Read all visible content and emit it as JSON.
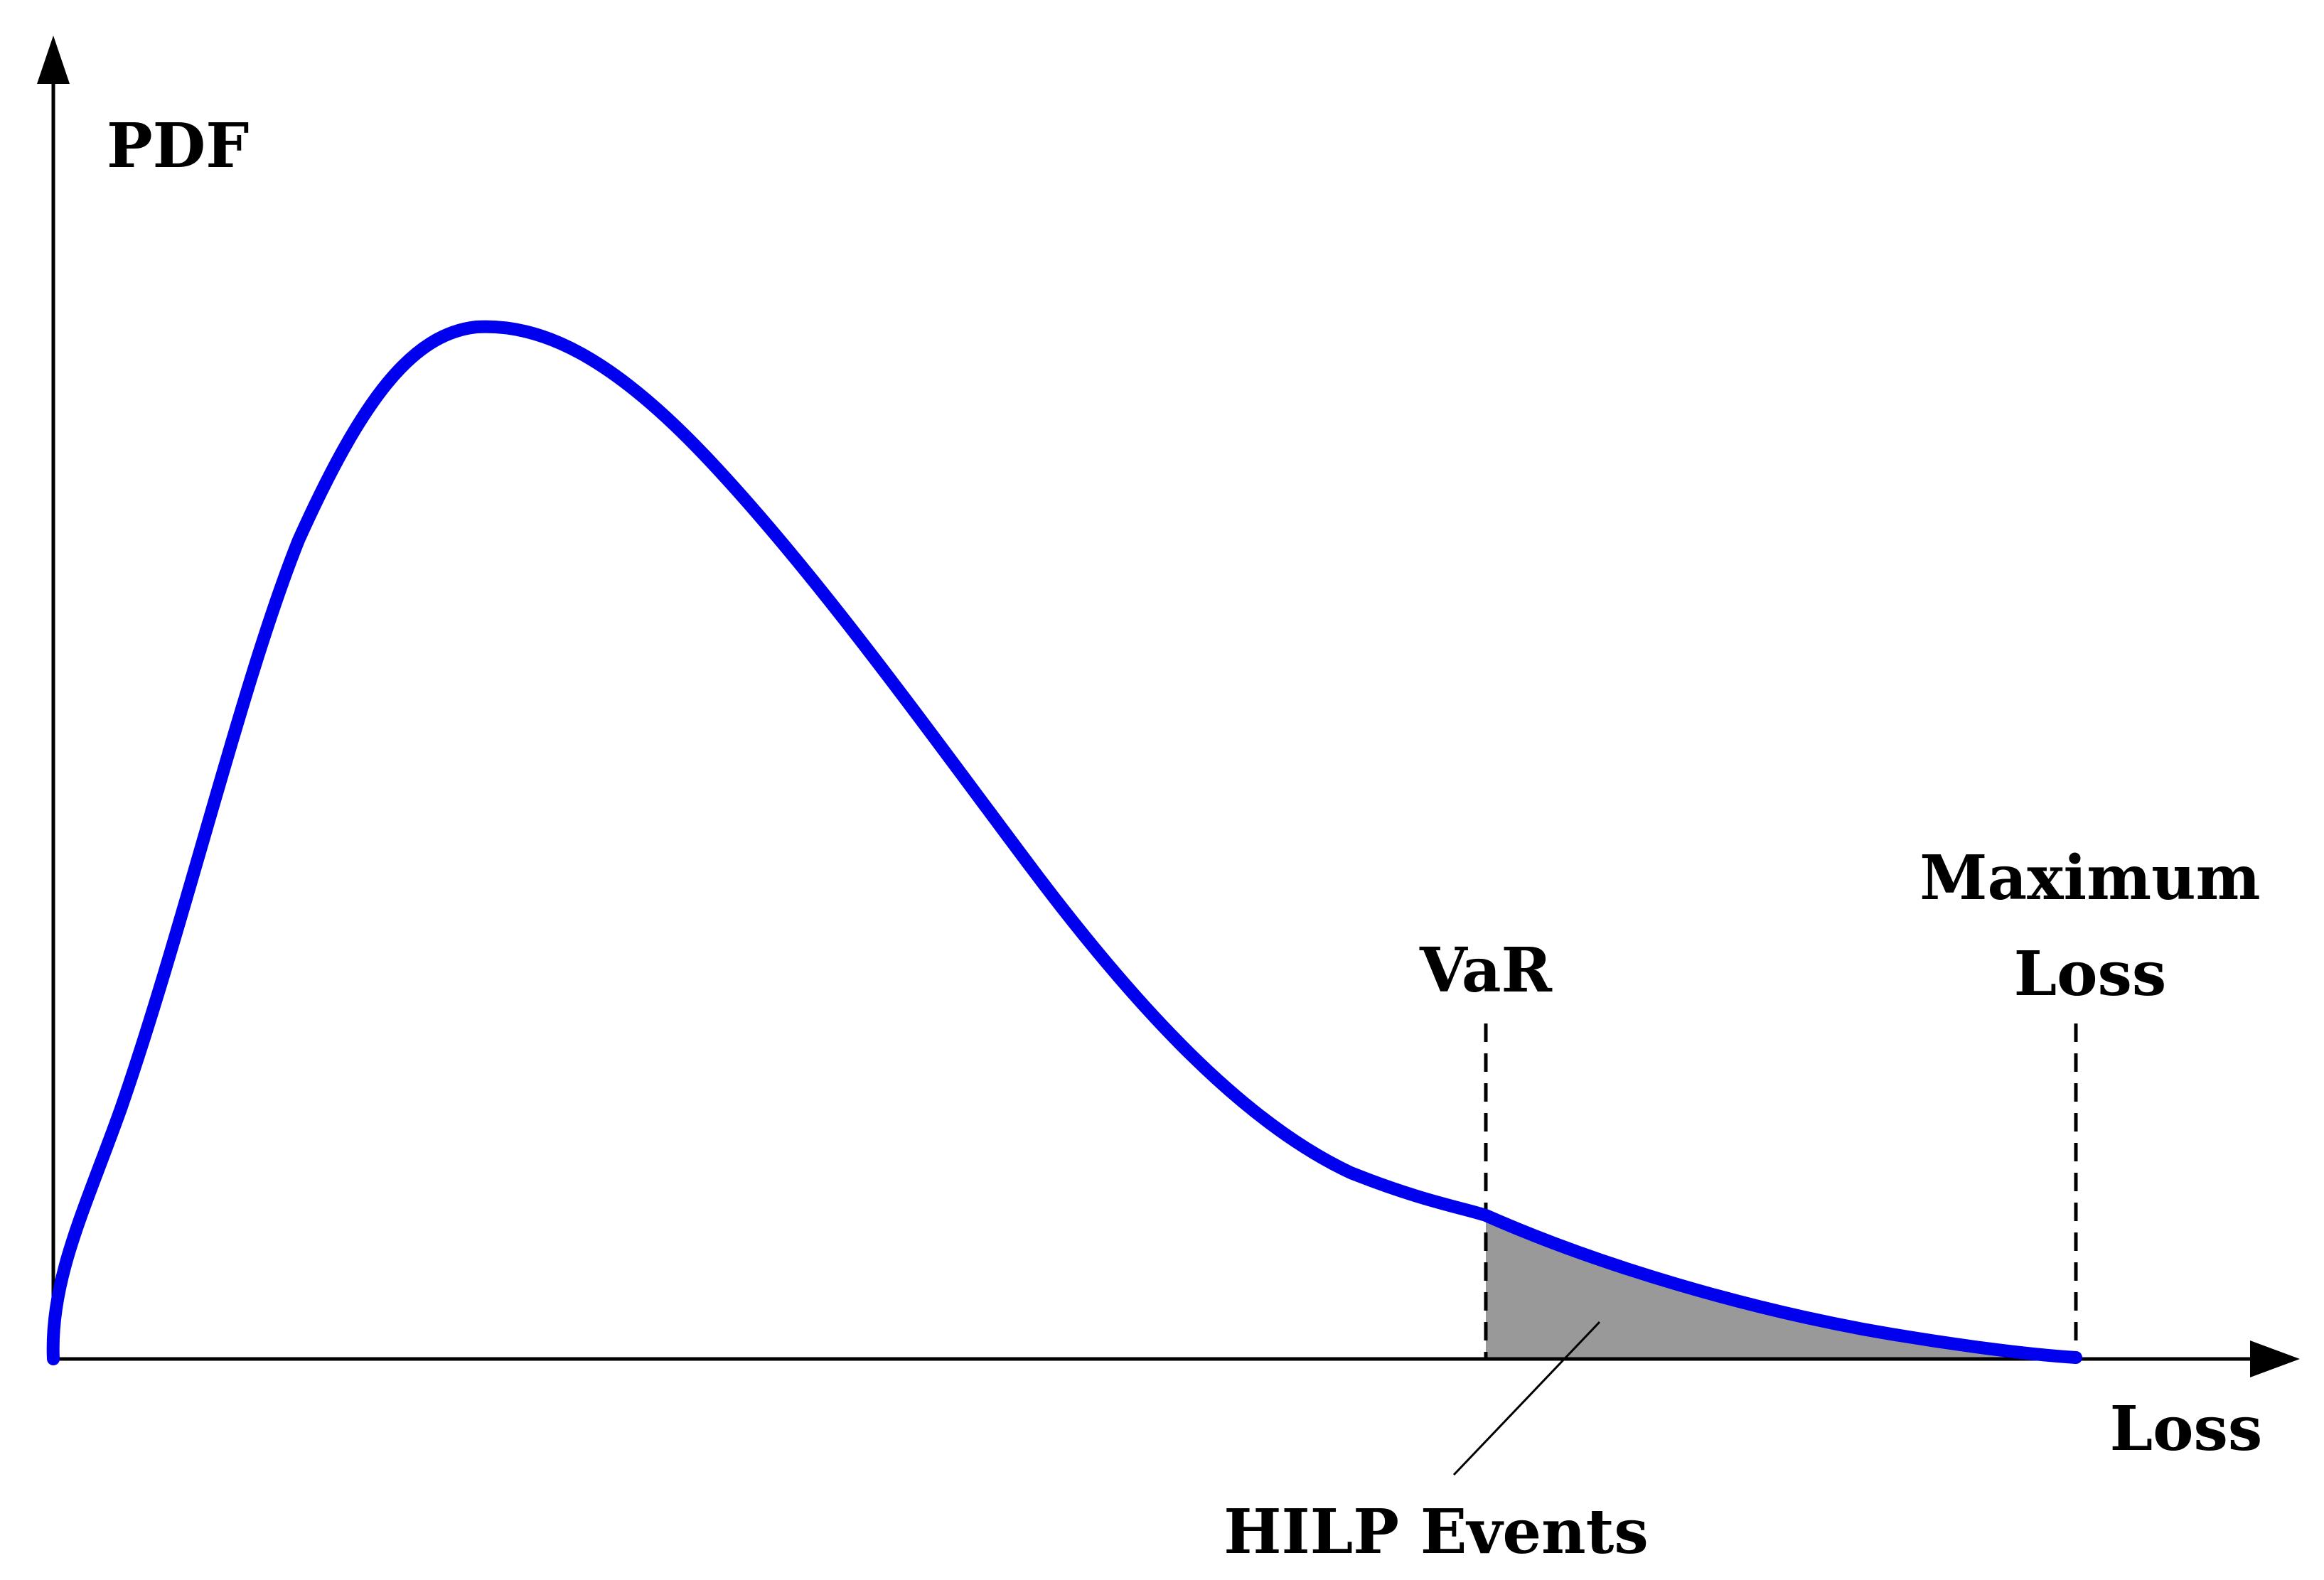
{
  "axes": {
    "y_label": "PDF",
    "x_label": "Loss"
  },
  "markers": {
    "var_label": "VaR",
    "max_loss_label_line1": "Maximum",
    "max_loss_label_line2": "Loss"
  },
  "annotation": {
    "tail_label": "HILP Events"
  },
  "colors": {
    "curve": "#0000ee",
    "tail_fill": "#999999",
    "axis": "#000000"
  }
}
